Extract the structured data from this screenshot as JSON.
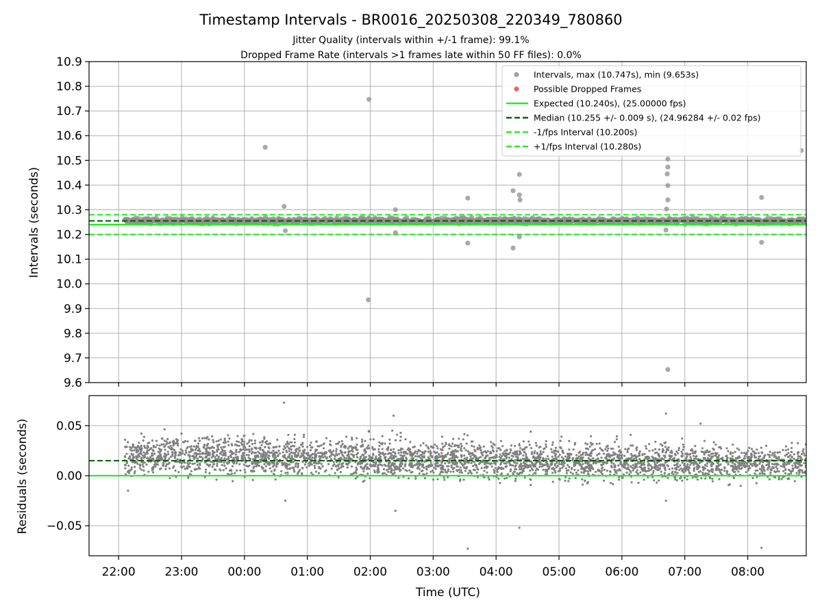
{
  "figure": {
    "title": "Timestamp Intervals - BR0016_20250308_220349_780860",
    "subtitle_1": "Jitter Quality (intervals within +/-1 frame): 99.1%",
    "subtitle_2": "Dropped Frame Rate (intervals >1 frames late within 50 FF files): 0.0%"
  },
  "colors": {
    "points": "#808080",
    "dropped": "#f06060",
    "expected": "#22ee22",
    "median": "#006400",
    "bounds": "#22ee22"
  },
  "chart_data": [
    {
      "type": "scatter",
      "panel": "intervals",
      "ylabel": "Intervals (seconds)",
      "ylim": [
        9.6,
        10.9
      ],
      "yticks": [
        9.6,
        9.7,
        9.8,
        9.9,
        10.0,
        10.1,
        10.2,
        10.3,
        10.4,
        10.5,
        10.6,
        10.7,
        10.8,
        10.9
      ],
      "ytick_labels": [
        "9.6",
        "9.7",
        "9.8",
        "9.9",
        "10.0",
        "10.1",
        "10.2",
        "10.3",
        "10.4",
        "10.5",
        "10.6",
        "10.7",
        "10.8",
        "10.9"
      ],
      "xlim_hours": [
        21.53,
        32.93
      ],
      "grid": true,
      "legend_position": "top-right",
      "legend": [
        {
          "kind": "marker",
          "color": "#a0a0a0",
          "label": "Intervals, max (10.747s), min (9.653s)"
        },
        {
          "kind": "marker",
          "color": "#f06060",
          "label": "Possible Dropped Frames"
        },
        {
          "kind": "line-solid",
          "color": "#22ee22",
          "label": "Expected (10.240s), (25.00000 fps)"
        },
        {
          "kind": "line-dashed",
          "color": "#006400",
          "label": "Median (10.255 +/- 0.009 s), (24.96284 +/- 0.02 fps)"
        },
        {
          "kind": "line-dashed",
          "color": "#22ee22",
          "label": "-1/fps Interval (10.200s)"
        },
        {
          "kind": "line-dashed",
          "color": "#22ee22",
          "label": "+1/fps Interval (10.280s)"
        }
      ],
      "expected": 10.24,
      "median": 10.255,
      "lower_bound": 10.2,
      "upper_bound": 10.28,
      "band": {
        "x_start_hours": 22.1,
        "x_end_hours": 32.93,
        "center": 10.255,
        "spread": 0.012
      },
      "outliers": [
        {
          "x_hours": 24.33,
          "y": 10.553
        },
        {
          "x_hours": 24.63,
          "y": 10.313
        },
        {
          "x_hours": 24.65,
          "y": 10.215
        },
        {
          "x_hours": 25.98,
          "y": 10.747
        },
        {
          "x_hours": 25.97,
          "y": 9.935
        },
        {
          "x_hours": 26.4,
          "y": 10.3
        },
        {
          "x_hours": 26.4,
          "y": 10.207
        },
        {
          "x_hours": 27.55,
          "y": 10.347
        },
        {
          "x_hours": 27.55,
          "y": 10.165
        },
        {
          "x_hours": 28.27,
          "y": 10.377
        },
        {
          "x_hours": 28.27,
          "y": 10.145
        },
        {
          "x_hours": 28.37,
          "y": 10.443
        },
        {
          "x_hours": 28.37,
          "y": 10.36
        },
        {
          "x_hours": 28.38,
          "y": 10.34
        },
        {
          "x_hours": 28.37,
          "y": 10.19
        },
        {
          "x_hours": 30.73,
          "y": 10.505
        },
        {
          "x_hours": 30.73,
          "y": 10.473
        },
        {
          "x_hours": 30.72,
          "y": 10.445
        },
        {
          "x_hours": 30.73,
          "y": 10.398
        },
        {
          "x_hours": 30.73,
          "y": 10.34
        },
        {
          "x_hours": 30.71,
          "y": 10.303
        },
        {
          "x_hours": 30.7,
          "y": 10.218
        },
        {
          "x_hours": 30.73,
          "y": 9.653
        },
        {
          "x_hours": 32.22,
          "y": 10.35
        },
        {
          "x_hours": 32.22,
          "y": 10.168
        },
        {
          "x_hours": 32.85,
          "y": 10.54
        }
      ]
    },
    {
      "type": "scatter",
      "panel": "residuals",
      "ylabel": "Residuals (seconds)",
      "xlabel": "Time (UTC)",
      "ylim": [
        -0.08,
        0.08
      ],
      "yticks": [
        -0.05,
        0.0,
        0.05
      ],
      "ytick_labels": [
        "−0.05",
        "0.00",
        "0.05"
      ],
      "xlim_hours": [
        21.53,
        32.93
      ],
      "xticks_hours": [
        22,
        23,
        24,
        25,
        26,
        27,
        28,
        29,
        30,
        31,
        32
      ],
      "xtick_labels": [
        "22:00",
        "23:00",
        "00:00",
        "01:00",
        "02:00",
        "03:00",
        "04:00",
        "05:00",
        "06:00",
        "07:00",
        "08:00"
      ],
      "grid": true,
      "zero_line": 0.0,
      "median_residual": 0.015,
      "band": {
        "x_start_hours": 22.1,
        "x_end_hours": 32.93,
        "center": 0.016,
        "spread": 0.009
      },
      "outliers": [
        {
          "x_hours": 24.63,
          "y": 0.073
        },
        {
          "x_hours": 24.65,
          "y": -0.025
        },
        {
          "x_hours": 22.15,
          "y": -0.015
        },
        {
          "x_hours": 23.0,
          "y": 0.042
        },
        {
          "x_hours": 25.98,
          "y": 0.044
        },
        {
          "x_hours": 25.97,
          "y": 0.03
        },
        {
          "x_hours": 26.37,
          "y": 0.06
        },
        {
          "x_hours": 26.4,
          "y": -0.035
        },
        {
          "x_hours": 26.35,
          "y": 0.045
        },
        {
          "x_hours": 27.55,
          "y": -0.073
        },
        {
          "x_hours": 28.37,
          "y": -0.052
        },
        {
          "x_hours": 28.55,
          "y": 0.044
        },
        {
          "x_hours": 30.7,
          "y": 0.062
        },
        {
          "x_hours": 30.7,
          "y": -0.025
        },
        {
          "x_hours": 31.25,
          "y": 0.052
        },
        {
          "x_hours": 32.22,
          "y": -0.072
        },
        {
          "x_hours": 24.0,
          "y": 0.04
        }
      ]
    }
  ]
}
